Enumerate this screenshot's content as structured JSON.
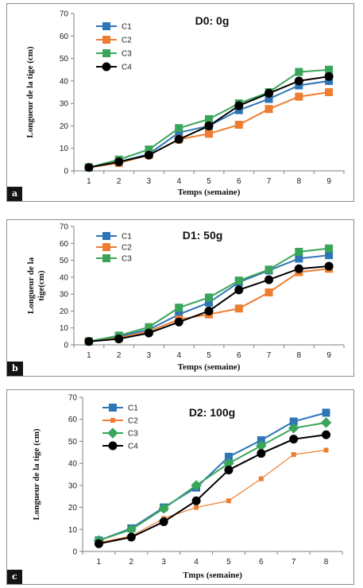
{
  "chart_data": [
    {
      "panel_label": "a",
      "type": "line",
      "title": "D0: 0g",
      "xlabel": "Temps (semaine)",
      "ylabel": "Longueur de la tige (cm)",
      "x": [
        1,
        2,
        3,
        4,
        5,
        6,
        7,
        8,
        9
      ],
      "ylim": [
        0,
        70
      ],
      "yticks": [
        0,
        10,
        20,
        30,
        40,
        50,
        60,
        70
      ],
      "legend_position": "top-left",
      "series": [
        {
          "name": "C1",
          "color": "#2e75b6",
          "marker": "square",
          "values": [
            1.5,
            4,
            7.5,
            17,
            20,
            27,
            32,
            38,
            40
          ]
        },
        {
          "name": "C2",
          "color": "#ed7d31",
          "marker": "square",
          "values": [
            1.5,
            3.5,
            7,
            14,
            16.5,
            20.5,
            27.5,
            33,
            35
          ]
        },
        {
          "name": "C3",
          "color": "#3aa55a",
          "marker": "square",
          "values": [
            1.5,
            5,
            9.5,
            19,
            23,
            30,
            35,
            44,
            45
          ]
        },
        {
          "name": "C4",
          "color": "#000000",
          "marker": "circle",
          "values": [
            1.5,
            4,
            7,
            14,
            20,
            29,
            34.5,
            40,
            42
          ]
        }
      ]
    },
    {
      "panel_label": "b",
      "type": "line",
      "title": "D1: 50g",
      "xlabel": "Temps (semaine)",
      "ylabel": "Longueur de la tige(cm)",
      "x": [
        1,
        2,
        3,
        4,
        5,
        6,
        7,
        8,
        9
      ],
      "ylim": [
        0,
        70
      ],
      "yticks": [
        0,
        10,
        20,
        30,
        40,
        50,
        60,
        70
      ],
      "legend_position": "top-left",
      "series": [
        {
          "name": "C1",
          "color": "#2e75b6",
          "marker": "square",
          "values": [
            2,
            5,
            9,
            18,
            25,
            37,
            44,
            51,
            53
          ]
        },
        {
          "name": "C2",
          "color": "#ed7d31",
          "marker": "square",
          "values": [
            2,
            4,
            8,
            15,
            18,
            21.5,
            31,
            43,
            45
          ]
        },
        {
          "name": "C3",
          "color": "#3aa55a",
          "marker": "square",
          "values": [
            2,
            5.5,
            10.5,
            22,
            28,
            38,
            44.5,
            55,
            57
          ]
        },
        {
          "name": "",
          "color": "#000000",
          "marker": "circle",
          "values": [
            2,
            3.5,
            7,
            13.5,
            20,
            32.5,
            38.5,
            45,
            46.5
          ]
        }
      ]
    },
    {
      "panel_label": "c",
      "type": "line",
      "title": "D2: 100g",
      "xlabel": "Tmps (semaine)",
      "ylabel": "Longueur de la tige (cm)",
      "x": [
        1,
        2,
        3,
        4,
        5,
        6,
        7,
        8
      ],
      "ylim": [
        0,
        70
      ],
      "yticks": [
        0,
        10,
        20,
        30,
        40,
        50,
        60,
        70
      ],
      "legend_position": "top-left",
      "series": [
        {
          "name": "C1",
          "color": "#2e75b6",
          "marker": "square",
          "values": [
            5,
            10.5,
            20,
            29,
            43,
            50.5,
            59,
            63
          ]
        },
        {
          "name": "C2",
          "color": "#ed7d31",
          "marker": "square-small",
          "values": [
            4,
            7,
            15,
            20,
            23,
            33,
            44,
            46
          ]
        },
        {
          "name": "C3",
          "color": "#3aa55a",
          "marker": "diamond",
          "values": [
            5,
            10,
            19.5,
            30,
            40,
            48,
            56,
            58.5
          ]
        },
        {
          "name": "C4",
          "color": "#000000",
          "marker": "circle",
          "values": [
            3.5,
            6.5,
            13.5,
            23,
            37,
            44.5,
            51,
            53
          ]
        }
      ]
    }
  ]
}
